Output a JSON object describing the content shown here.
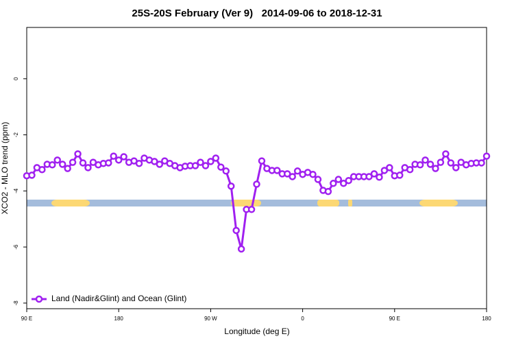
{
  "chart_data": {
    "type": "line",
    "title": "25S-20S February (Ver 9)   2014-09-06 to 2018-12-31",
    "x_label": "Longitude (deg E)",
    "y_label": "XCO2 - MLO trend (ppm)",
    "x": [
      90,
      95,
      100,
      105,
      110,
      115,
      120,
      125,
      130,
      135,
      140,
      145,
      150,
      155,
      160,
      165,
      170,
      175,
      180,
      185,
      190,
      195,
      200,
      205,
      210,
      215,
      220,
      225,
      230,
      235,
      240,
      245,
      250,
      255,
      260,
      265,
      270,
      275,
      280,
      285,
      290,
      295,
      300,
      305,
      310,
      315,
      320,
      325,
      330,
      335,
      340,
      345,
      350,
      355,
      360,
      365,
      370,
      375,
      380,
      385,
      390,
      395,
      400,
      405,
      410,
      415,
      420,
      425,
      430,
      435,
      440,
      445,
      450,
      455,
      460,
      465,
      470,
      475,
      480,
      485,
      490,
      495,
      500,
      505,
      510,
      515,
      520,
      525,
      530,
      535,
      540
    ],
    "series": [
      {
        "name": "Land (Nadir&Glint) and Ocean (Glint)",
        "color": "#a020f0",
        "values": [
          -3.46,
          -3.44,
          -3.17,
          -3.24,
          -3.05,
          -3.07,
          -2.9,
          -3.05,
          -3.2,
          -2.98,
          -2.68,
          -3.0,
          -3.17,
          -2.98,
          -3.07,
          -3.02,
          -3.0,
          -2.76,
          -2.9,
          -2.78,
          -2.98,
          -2.93,
          -3.02,
          -2.83,
          -2.9,
          -2.95,
          -3.05,
          -2.93,
          -3.02,
          -3.1,
          -3.17,
          -3.12,
          -3.1,
          -3.1,
          -2.98,
          -3.1,
          -2.95,
          -2.83,
          -3.15,
          -3.29,
          -3.83,
          -5.41,
          -6.07,
          -4.66,
          -4.66,
          -3.76,
          -2.93,
          -3.2,
          -3.27,
          -3.27,
          -3.39,
          -3.39,
          -3.49,
          -3.29,
          -3.41,
          -3.34,
          -3.41,
          -3.59,
          -3.98,
          -4.02,
          -3.73,
          -3.59,
          -3.73,
          -3.63,
          -3.49,
          -3.49,
          -3.49,
          -3.49,
          -3.39,
          -3.51,
          -3.27,
          -3.17,
          -3.46,
          -3.44,
          -3.17,
          -3.24,
          -3.05,
          -3.07,
          -2.9,
          -3.05,
          -3.2,
          -2.98,
          -2.68,
          -3.0,
          -3.17,
          -2.98,
          -3.07,
          -3.02,
          -3.0,
          -3.0,
          -2.76
        ]
      }
    ],
    "xlim": [
      90,
      540
    ],
    "xticks": [
      {
        "value": 90,
        "label": "90 E"
      },
      180,
      {
        "value": 270,
        "label": "90 W"
      },
      {
        "value": 360,
        "label": "0"
      },
      {
        "value": 450,
        "label": "90 E"
      },
      {
        "value": 540,
        "label": "180"
      }
    ],
    "ylim": [
      -8.2,
      1.83
    ],
    "yticks": [
      -8,
      -6,
      -4,
      -2,
      0
    ],
    "legend": "bottom-left"
  }
}
